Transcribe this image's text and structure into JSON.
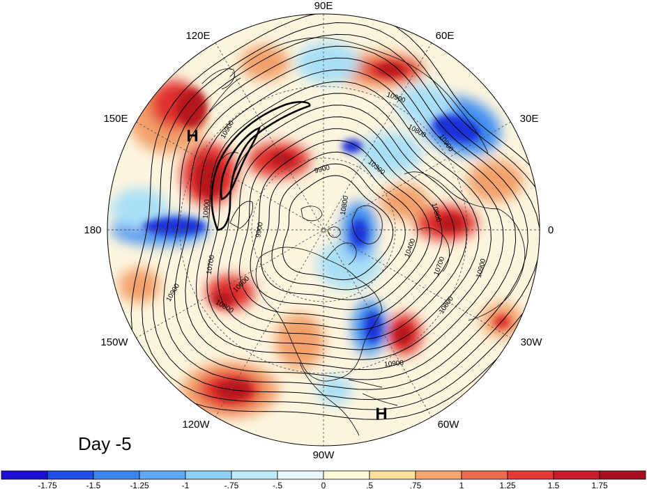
{
  "panel_label": "Day -5",
  "longitude_labels": {
    "north": "90E",
    "ne": "60E",
    "nw": "120E",
    "ene": "30E",
    "wnw": "150E",
    "east": "0",
    "west": "180",
    "wsw": "150W",
    "ese": "30W",
    "sw": "120W",
    "se": "60W",
    "south": "90W"
  },
  "highs": [
    {
      "label": "H",
      "where": "upper-left"
    },
    {
      "label": "H",
      "where": "lower-right"
    }
  ],
  "contour_labels": [
    "10900",
    "10900",
    "10800",
    "10900",
    "10300",
    "9900",
    "10900",
    "10800",
    "9900",
    "10700",
    "10600",
    "10400",
    "10700",
    "10800",
    "10900",
    "10900",
    "10800",
    "10900",
    "10800"
  ],
  "colorbar": {
    "ticks": [
      "-1.75",
      "-1.5",
      "-1.25",
      "-1",
      "-.75",
      "-.5",
      "0",
      ".5",
      ".75",
      "1",
      "1.25",
      "1.5",
      "1.75"
    ],
    "colors": [
      "#1c0fd6",
      "#1f4de6",
      "#3a86ee",
      "#5fa8f2",
      "#8fd0f5",
      "#bfeafa",
      "#e8f8fc",
      "#fffbd8",
      "#fde0a0",
      "#f6a56f",
      "#ec6b50",
      "#e33a35",
      "#c81a29",
      "#a50f1f"
    ]
  },
  "colors": {
    "strong_blue": "#1c32d8",
    "blue": "#3f8ef0",
    "light_blue": "#a9dff6",
    "pale_yellow": "#fff4c8",
    "orange": "#f3a06a",
    "red": "#e0332f",
    "dark_red": "#b5121f"
  }
}
